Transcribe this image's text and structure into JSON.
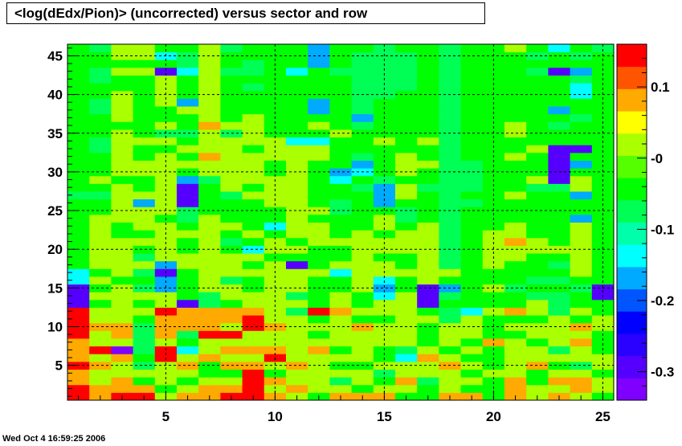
{
  "chart_data": {
    "type": "heatmap",
    "title": "<log(dEdx/Pion)> (uncorrected) versus sector and row",
    "x_range": [
      1,
      25
    ],
    "y_range": [
      1,
      46
    ],
    "z_range": [
      -0.34,
      0.16
    ],
    "grid": true,
    "x_ticks": [
      5,
      10,
      15,
      20,
      25
    ],
    "y_ticks": [
      5,
      10,
      15,
      20,
      25,
      30,
      35,
      40,
      45
    ],
    "z_ticks": [
      0.1,
      0,
      -0.1,
      -0.2,
      -0.3
    ],
    "x_tick_labels": [
      "5",
      "10",
      "15",
      "20",
      "25"
    ],
    "y_tick_labels": [
      "5",
      "10",
      "15",
      "20",
      "25",
      "30",
      "35",
      "40",
      "45"
    ],
    "z_tick_labels": [
      "0.1",
      "-0",
      "-0.1",
      "-0.2",
      "-0.3"
    ],
    "palette": [
      "#7f00ff",
      "#5500ff",
      "#2a00ff",
      "#0000ff",
      "#0055ff",
      "#00aaff",
      "#00ffff",
      "#00ffaa",
      "#00ff55",
      "#00ff00",
      "#55ff00",
      "#aaff00",
      "#ffff00",
      "#ffaa00",
      "#ff5500",
      "#ff0000"
    ],
    "cells": [
      [
        "r",
        "o",
        "r",
        "r",
        "y",
        "o",
        "o",
        "r",
        "r",
        "o",
        "y",
        "l",
        "o",
        "o",
        "o",
        "l",
        "l",
        "o",
        "o",
        "l",
        "o",
        "y",
        "o",
        "y",
        "l"
      ],
      [
        "r",
        "o",
        "o",
        "o",
        "l",
        "y",
        "o",
        "o",
        "r",
        "y",
        "o",
        "y",
        "y",
        "l",
        "y",
        "y",
        "l",
        "y",
        "l",
        "l",
        "o",
        "y",
        "y",
        "o",
        "y"
      ],
      [
        "o",
        "y",
        "o",
        "l",
        "y",
        "l",
        "y",
        "y",
        "r",
        "o",
        "y",
        "y",
        "g",
        "y",
        "l",
        "o",
        "g",
        "y",
        "y",
        "l",
        "o",
        "l",
        "o",
        "o",
        "y"
      ],
      [
        "o",
        "y",
        "y",
        "y",
        "y",
        "y",
        "l",
        "l",
        "r",
        "l",
        "y",
        "y",
        "y",
        "y",
        "g",
        "y",
        "y",
        "y",
        "l",
        "y",
        "y",
        "l",
        "y",
        "y",
        "l"
      ],
      [
        "r",
        "o",
        "y",
        "g",
        "y",
        "o",
        "l",
        "o",
        "o",
        "y",
        "o",
        "y",
        "l",
        "l",
        "y",
        "y",
        "y",
        "o",
        "y",
        "l",
        "y",
        "o",
        "l",
        "g",
        "y"
      ],
      [
        "o",
        "y",
        "o",
        "l",
        "r",
        "y",
        "o",
        "y",
        "y",
        "r",
        "y",
        "y",
        "y",
        "y",
        "l",
        "s",
        "o",
        "y",
        "l",
        "l",
        "y",
        "y",
        "y",
        "y",
        "y"
      ],
      [
        "o",
        "r",
        "v",
        "g",
        "r",
        "s",
        "y",
        "o",
        "o",
        "o",
        "y",
        "o",
        "l",
        "y",
        "l",
        "g",
        "y",
        "l",
        "y",
        "l",
        "y",
        "y",
        "g",
        "y",
        "l"
      ],
      [
        "o",
        "y",
        "y",
        "g",
        "y",
        "l",
        "y",
        "y",
        "y",
        "y",
        "y",
        "y",
        "y",
        "y",
        "y",
        "y",
        "l",
        "y",
        "l",
        "o",
        "y",
        "l",
        "y",
        "o",
        "l"
      ],
      [
        "r",
        "y",
        "o",
        "g",
        "o",
        "g",
        "r",
        "r",
        "y",
        "y",
        "y",
        "l",
        "y",
        "y",
        "y",
        "y",
        "l",
        "y",
        "y",
        "l",
        "l",
        "y",
        "y",
        "y",
        "l"
      ],
      [
        "r",
        "o",
        "o",
        "g",
        "o",
        "o",
        "o",
        "y",
        "r",
        "o",
        "y",
        "y",
        "y",
        "o",
        "y",
        "y",
        "l",
        "y",
        "y",
        "l",
        "y",
        "y",
        "y",
        "o",
        "y"
      ],
      [
        "r",
        "y",
        "y",
        "l",
        "o",
        "o",
        "o",
        "o",
        "r",
        "y",
        "y",
        "l",
        "y",
        "l",
        "l",
        "y",
        "y",
        "g",
        "y",
        "l",
        "l",
        "l",
        "y",
        "l",
        "y"
      ],
      [
        "r",
        "y",
        "y",
        "y",
        "r",
        "o",
        "o",
        "o",
        "o",
        "y",
        "g",
        "r",
        "o",
        "y",
        "y",
        "y",
        "l",
        "g",
        "s",
        "y",
        "o",
        "y",
        "g",
        "y",
        "l"
      ],
      [
        "b",
        "l",
        "y",
        "l",
        "y",
        "b",
        "g",
        "l",
        "y",
        "y",
        "y",
        "l",
        "y",
        "l",
        "y",
        "y",
        "b",
        "l",
        "l",
        "l",
        "l",
        "y",
        "g",
        "l",
        "l"
      ],
      [
        "b",
        "y",
        "y",
        "y",
        "y",
        "l",
        "g",
        "y",
        "y",
        "y",
        "g",
        "l",
        "y",
        "l",
        "s",
        "y",
        "b",
        "g",
        "l",
        "l",
        "l",
        "g",
        "g",
        "l",
        "b"
      ],
      [
        "b",
        "l",
        "y",
        "g",
        "c",
        "l",
        "y",
        "y",
        "l",
        "y",
        "y",
        "l",
        "l",
        "y",
        "c",
        "l",
        "b",
        "c",
        "l",
        "y",
        "g",
        "l",
        "l",
        "g",
        "b"
      ],
      [
        "s",
        "y",
        "l",
        "l",
        "c",
        "l",
        "y",
        "g",
        "l",
        "y",
        "y",
        "l",
        "l",
        "y",
        "s",
        "l",
        "y",
        "l",
        "l",
        "l",
        "l",
        "g",
        "g",
        "l",
        "l"
      ],
      [
        "s",
        "l",
        "y",
        "g",
        "b",
        "l",
        "y",
        "y",
        "y",
        "y",
        "y",
        "y",
        "s",
        "y",
        "y",
        "y",
        "y",
        "y",
        "l",
        "l",
        "l",
        "l",
        "l",
        "y",
        "l"
      ],
      [
        "l",
        "y",
        "y",
        "y",
        "c",
        "y",
        "y",
        "y",
        "l",
        "y",
        "b",
        "l",
        "y",
        "y",
        "y",
        "l",
        "y",
        "g",
        "l",
        "y",
        "l",
        "l",
        "g",
        "y",
        "l"
      ],
      [
        "l",
        "y",
        "y",
        "g",
        "y",
        "y",
        "y",
        "y",
        "y",
        "l",
        "l",
        "l",
        "l",
        "y",
        "l",
        "l",
        "y",
        "g",
        "l",
        "y",
        "y",
        "l",
        "l",
        "y",
        "l"
      ],
      [
        "l",
        "y",
        "y",
        "l",
        "y",
        "l",
        "y",
        "l",
        "s",
        "y",
        "y",
        "l",
        "l",
        "y",
        "y",
        "y",
        "y",
        "g",
        "l",
        "y",
        "y",
        "y",
        "y",
        "y",
        "l"
      ],
      [
        "l",
        "y",
        "y",
        "y",
        "y",
        "l",
        "y",
        "g",
        "l",
        "y",
        "l",
        "y",
        "y",
        "y",
        "y",
        "y",
        "y",
        "g",
        "l",
        "y",
        "o",
        "y",
        "l",
        "y",
        "l"
      ],
      [
        "l",
        "y",
        "l",
        "l",
        "y",
        "y",
        "y",
        "l",
        "y",
        "l",
        "y",
        "y",
        "l",
        "y",
        "l",
        "y",
        "y",
        "g",
        "l",
        "y",
        "y",
        "l",
        "l",
        "y",
        "l"
      ],
      [
        "l",
        "y",
        "l",
        "y",
        "y",
        "l",
        "y",
        "y",
        "l",
        "s",
        "y",
        "y",
        "l",
        "l",
        "y",
        "l",
        "y",
        "g",
        "l",
        "l",
        "y",
        "l",
        "l",
        "y",
        "l"
      ],
      [
        "l",
        "y",
        "y",
        "y",
        "l",
        "g",
        "y",
        "l",
        "l",
        "l",
        "y",
        "l",
        "l",
        "l",
        "y",
        "g",
        "l",
        "g",
        "l",
        "l",
        "l",
        "l",
        "l",
        "c",
        "l"
      ],
      [
        "l",
        "l",
        "y",
        "y",
        "y",
        "g",
        "l",
        "l",
        "l",
        "l",
        "y",
        "y",
        "g",
        "l",
        "l",
        "g",
        "l",
        "g",
        "l",
        "l",
        "l",
        "l",
        "l",
        "l",
        "l"
      ],
      [
        "l",
        "l",
        "y",
        "c",
        "y",
        "b",
        "l",
        "l",
        "l",
        "y",
        "y",
        "l",
        "g",
        "l",
        "c",
        "l",
        "l",
        "g",
        "g",
        "l",
        "l",
        "l",
        "l",
        "l",
        "l"
      ],
      [
        "g",
        "g",
        "y",
        "y",
        "y",
        "b",
        "l",
        "g",
        "y",
        "y",
        "y",
        "l",
        "l",
        "l",
        "c",
        "y",
        "l",
        "g",
        "l",
        "l",
        "y",
        "l",
        "l",
        "c",
        "l"
      ],
      [
        "l",
        "l",
        "y",
        "l",
        "y",
        "b",
        "l",
        "y",
        "l",
        "y",
        "y",
        "l",
        "l",
        "g",
        "c",
        "y",
        "g",
        "g",
        "g",
        "l",
        "l",
        "g",
        "g",
        "y",
        "l"
      ],
      [
        "l",
        "y",
        "l",
        "l",
        "y",
        "c",
        "g",
        "y",
        "y",
        "y",
        "y",
        "l",
        "s",
        "l",
        "g",
        "l",
        "l",
        "g",
        "g",
        "l",
        "l",
        "y",
        "b",
        "y",
        "l"
      ],
      [
        "l",
        "l",
        "y",
        "y",
        "y",
        "l",
        "y",
        "y",
        "y",
        "l",
        "y",
        "l",
        "c",
        "s",
        "l",
        "y",
        "l",
        "g",
        "g",
        "l",
        "l",
        "l",
        "b",
        "l",
        "l"
      ],
      [
        "l",
        "l",
        "y",
        "y",
        "y",
        "y",
        "y",
        "y",
        "y",
        "l",
        "y",
        "l",
        "l",
        "c",
        "l",
        "y",
        "y",
        "g",
        "g",
        "l",
        "l",
        "l",
        "b",
        "c",
        "l"
      ],
      [
        "l",
        "l",
        "y",
        "l",
        "y",
        "l",
        "o",
        "y",
        "y",
        "y",
        "y",
        "y",
        "l",
        "g",
        "l",
        "y",
        "l",
        "g",
        "l",
        "l",
        "y",
        "l",
        "b",
        "l",
        "l"
      ],
      [
        "l",
        "g",
        "y",
        "l",
        "l",
        "y",
        "y",
        "y",
        "l",
        "y",
        "y",
        "y",
        "l",
        "l",
        "l",
        "l",
        "l",
        "g",
        "l",
        "l",
        "l",
        "y",
        "b",
        "b",
        "l"
      ],
      [
        "l",
        "g",
        "y",
        "y",
        "y",
        "l",
        "y",
        "y",
        "y",
        "y",
        "s",
        "s",
        "l",
        "l",
        "y",
        "l",
        "y",
        "g",
        "l",
        "l",
        "l",
        "l",
        "l",
        "l",
        "l"
      ],
      [
        "l",
        "l",
        "y",
        "l",
        "g",
        "g",
        "y",
        "g",
        "y",
        "l",
        "l",
        "l",
        "y",
        "l",
        "l",
        "l",
        "l",
        "g",
        "l",
        "l",
        "y",
        "l",
        "l",
        "l",
        "l"
      ],
      [
        "l",
        "l",
        "l",
        "l",
        "y",
        "l",
        "o",
        "y",
        "y",
        "l",
        "l",
        "y",
        "l",
        "g",
        "l",
        "l",
        "l",
        "g",
        "l",
        "l",
        "y",
        "l",
        "g",
        "l",
        "l"
      ],
      [
        "l",
        "l",
        "y",
        "l",
        "l",
        "l",
        "y",
        "l",
        "y",
        "l",
        "l",
        "l",
        "l",
        "c",
        "l",
        "l",
        "l",
        "g",
        "l",
        "l",
        "l",
        "l",
        "l",
        "g",
        "l"
      ],
      [
        "l",
        "g",
        "y",
        "l",
        "l",
        "y",
        "y",
        "l",
        "l",
        "l",
        "l",
        "c",
        "l",
        "g",
        "l",
        "l",
        "l",
        "g",
        "l",
        "l",
        "l",
        "l",
        "c",
        "l",
        "l"
      ],
      [
        "l",
        "g",
        "y",
        "l",
        "y",
        "c",
        "y",
        "l",
        "l",
        "l",
        "l",
        "c",
        "l",
        "g",
        "l",
        "l",
        "l",
        "g",
        "l",
        "l",
        "l",
        "l",
        "l",
        "l",
        "l"
      ],
      [
        "l",
        "l",
        "y",
        "l",
        "y",
        "l",
        "y",
        "l",
        "l",
        "l",
        "l",
        "l",
        "l",
        "g",
        "g",
        "l",
        "l",
        "g",
        "l",
        "l",
        "l",
        "l",
        "l",
        "s",
        "l"
      ],
      [
        "l",
        "l",
        "l",
        "l",
        "y",
        "l",
        "y",
        "l",
        "g",
        "l",
        "l",
        "l",
        "l",
        "g",
        "g",
        "g",
        "l",
        "g",
        "l",
        "l",
        "l",
        "l",
        "l",
        "s",
        "l"
      ],
      [
        "l",
        "g",
        "l",
        "l",
        "y",
        "l",
        "y",
        "l",
        "l",
        "l",
        "l",
        "l",
        "l",
        "g",
        "g",
        "g",
        "l",
        "g",
        "l",
        "l",
        "l",
        "l",
        "l",
        "g",
        "l"
      ],
      [
        "l",
        "g",
        "y",
        "y",
        "b",
        "s",
        "y",
        "g",
        "g",
        "l",
        "s",
        "l",
        "g",
        "g",
        "g",
        "g",
        "l",
        "g",
        "l",
        "l",
        "l",
        "g",
        "b",
        "c",
        "l"
      ],
      [
        "l",
        "l",
        "l",
        "l",
        "l",
        "g",
        "y",
        "l",
        "g",
        "l",
        "l",
        "c",
        "l",
        "g",
        "g",
        "g",
        "l",
        "g",
        "l",
        "l",
        "l",
        "l",
        "l",
        "l",
        "l"
      ],
      [
        "l",
        "l",
        "y",
        "y",
        "s",
        "g",
        "y",
        "l",
        "l",
        "l",
        "l",
        "c",
        "l",
        "g",
        "g",
        "g",
        "l",
        "g",
        "l",
        "l",
        "l",
        "g",
        "l",
        "g",
        "l"
      ],
      [
        "l",
        "g",
        "y",
        "y",
        "l",
        "l",
        "y",
        "g",
        "l",
        "l",
        "l",
        "c",
        "l",
        "l",
        "g",
        "l",
        "l",
        "g",
        "l",
        "l",
        "y",
        "l",
        "s",
        "l",
        "g"
      ]
    ],
    "cell_codes": {
      "r": 0.15,
      "o": 0.09,
      "y": 0.02,
      "l": -0.03,
      "g": -0.09,
      "s": -0.14,
      "c": -0.18,
      "b": -0.28,
      "v": -0.33
    }
  },
  "timestamp": "Wed Oct  4 16:59:25 2006"
}
